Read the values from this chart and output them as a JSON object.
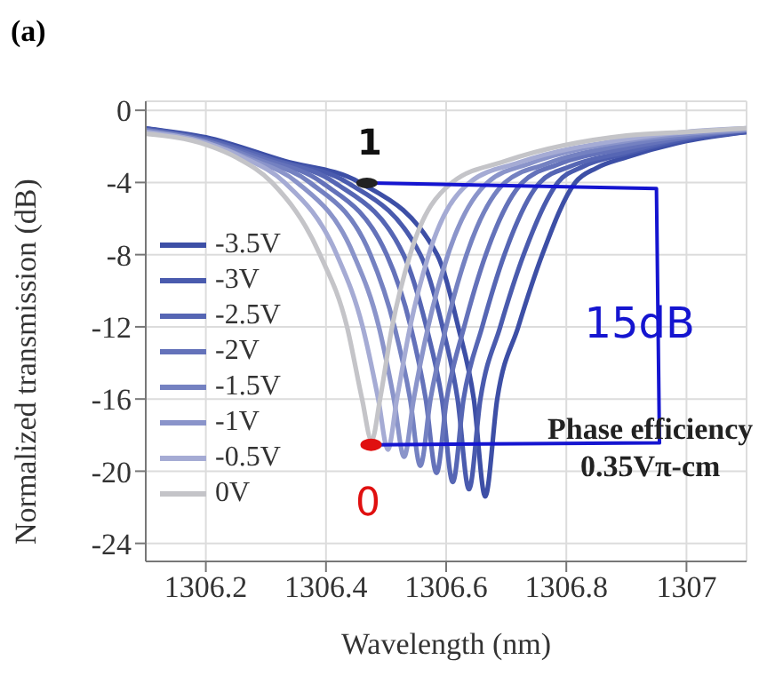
{
  "chart_data": {
    "type": "line",
    "title": "(a)",
    "xlabel": "Wavelength (nm)",
    "ylabel": "Normalized transmission (dB)",
    "xlim": [
      1306.1,
      1307.1
    ],
    "xticks": [
      1306.2,
      1306.4,
      1306.6,
      1306.8,
      1307
    ],
    "ylim": [
      -25,
      0.5
    ],
    "yticks": [
      0,
      -4,
      -8,
      -12,
      -16,
      -20,
      -24
    ],
    "grid": true,
    "legend": "left",
    "marker": "none",
    "line_style": "solid",
    "annotations": [
      "Phase efficiency 0.35Vπ-cm",
      "1",
      "0",
      "15dB"
    ],
    "series": [
      {
        "name": "-3.5V",
        "color": "#3d4fa6",
        "x": [
          1306.1,
          1306.2,
          1306.33,
          1306.456,
          1306.585,
          1306.62,
          1306.646,
          1306.665,
          1306.685,
          1306.72,
          1306.76,
          1306.815,
          1306.85,
          1306.9,
          1307.0,
          1307.1
        ],
        "values": [
          -1.0,
          -1.5,
          -2.8,
          -4,
          -8,
          -12,
          -16,
          -21.4,
          -16,
          -12,
          -8,
          -4,
          -3.2,
          -2.6,
          -1.7,
          -1.2
        ]
      },
      {
        "name": "-3V",
        "color": "#4a5bae",
        "x": [
          1306.1,
          1306.2,
          1306.319,
          1306.435,
          1306.557,
          1306.594,
          1306.619,
          1306.638,
          1306.657,
          1306.69,
          1306.729,
          1306.786,
          1306.829,
          1306.9,
          1307.0,
          1307.1
        ],
        "values": [
          -1.0,
          -1.6,
          -2.8,
          -4,
          -8,
          -12,
          -16,
          -21.0,
          -16,
          -12,
          -8,
          -4,
          -3.1,
          -2.4,
          -1.6,
          -1.2
        ]
      },
      {
        "name": "-2.5V",
        "color": "#5666b4",
        "x": [
          1306.1,
          1306.2,
          1306.307,
          1306.414,
          1306.529,
          1306.567,
          1306.593,
          1306.611,
          1306.629,
          1306.66,
          1306.697,
          1306.756,
          1306.807,
          1306.9,
          1307.0,
          1307.1
        ],
        "values": [
          -1.1,
          -1.6,
          -2.7,
          -4,
          -8,
          -12,
          -16,
          -20.6,
          -16,
          -12,
          -8,
          -4,
          -3.1,
          -2.3,
          -1.5,
          -1.1
        ]
      },
      {
        "name": "-2V",
        "color": "#6472ba",
        "x": [
          1306.1,
          1306.2,
          1306.296,
          1306.393,
          1306.501,
          1306.541,
          1306.566,
          1306.584,
          1306.601,
          1306.63,
          1306.666,
          1306.727,
          1306.786,
          1306.9,
          1307.0,
          1307.1
        ],
        "values": [
          -1.1,
          -1.7,
          -2.7,
          -4,
          -8,
          -12,
          -16,
          -20.1,
          -16,
          -12,
          -8,
          -4,
          -3.0,
          -2.1,
          -1.5,
          -1.1
        ]
      },
      {
        "name": "-1.5V",
        "color": "#7481c1",
        "x": [
          1306.1,
          1306.2,
          1306.284,
          1306.373,
          1306.474,
          1306.514,
          1306.54,
          1306.557,
          1306.574,
          1306.6,
          1306.634,
          1306.698,
          1306.764,
          1306.9,
          1307.0,
          1307.1
        ],
        "values": [
          -1.1,
          -1.7,
          -2.7,
          -4,
          -8,
          -12,
          -16,
          -19.7,
          -16,
          -12,
          -8,
          -4,
          -3.0,
          -1.9,
          -1.4,
          -1.1
        ]
      },
      {
        "name": "-1V",
        "color": "#8a94ca",
        "x": [
          1306.1,
          1306.2,
          1306.273,
          1306.352,
          1306.446,
          1306.488,
          1306.513,
          1306.53,
          1306.546,
          1306.57,
          1306.603,
          1306.669,
          1306.743,
          1306.9,
          1307.0,
          1307.1
        ],
        "values": [
          -1.2,
          -1.8,
          -2.7,
          -4,
          -8,
          -12,
          -16,
          -19.2,
          -16,
          -12,
          -8,
          -4,
          -2.9,
          -1.7,
          -1.3,
          -1.1
        ]
      },
      {
        "name": "-0.5V",
        "color": "#a5abd4",
        "x": [
          1306.1,
          1306.2,
          1306.261,
          1306.331,
          1306.418,
          1306.461,
          1306.487,
          1306.503,
          1306.518,
          1306.54,
          1306.571,
          1306.639,
          1306.721,
          1306.9,
          1307.0,
          1307.1
        ],
        "values": [
          -1.2,
          -1.8,
          -2.6,
          -4,
          -8,
          -12,
          -16,
          -18.8,
          -16,
          -12,
          -8,
          -4,
          -2.9,
          -1.6,
          -1.2,
          -1.0
        ]
      },
      {
        "name": "0V",
        "color": "#c4c4c8",
        "x": [
          1306.1,
          1306.2,
          1306.25,
          1306.31,
          1306.39,
          1306.435,
          1306.46,
          1306.476,
          1306.49,
          1306.51,
          1306.54,
          1306.61,
          1306.7,
          1306.9,
          1307.0,
          1307.1
        ],
        "values": [
          -1.3,
          -1.9,
          -2.6,
          -4,
          -8,
          -12,
          -16,
          -18.3,
          -16,
          -12,
          -8,
          -4,
          -2.8,
          -1.4,
          -1.2,
          -1.0
        ]
      }
    ]
  }
}
